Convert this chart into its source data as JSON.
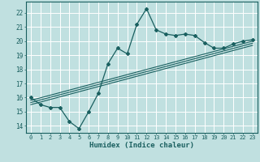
{
  "xlabel": "Humidex (Indice chaleur)",
  "ylabel": "",
  "xlim": [
    -0.5,
    23.5
  ],
  "ylim": [
    13.5,
    22.8
  ],
  "xticks": [
    0,
    1,
    2,
    3,
    4,
    5,
    6,
    7,
    8,
    9,
    10,
    11,
    12,
    13,
    14,
    15,
    16,
    17,
    18,
    19,
    20,
    21,
    22,
    23
  ],
  "yticks": [
    14,
    15,
    16,
    17,
    18,
    19,
    20,
    21,
    22
  ],
  "bg_color": "#c0e0e0",
  "line_color": "#1a6060",
  "grid_color": "#b0d4d4",
  "border_color": "#1a6060",
  "main_x": [
    0,
    1,
    2,
    3,
    4,
    5,
    6,
    7,
    8,
    9,
    10,
    11,
    12,
    13,
    14,
    15,
    16,
    17,
    18,
    19,
    20,
    21,
    22,
    23
  ],
  "main_y": [
    16.0,
    15.5,
    15.3,
    15.3,
    14.3,
    13.8,
    15.0,
    16.3,
    18.4,
    19.5,
    19.1,
    21.2,
    22.3,
    20.8,
    20.5,
    20.4,
    20.5,
    20.4,
    19.9,
    19.5,
    19.5,
    19.8,
    20.0,
    20.1
  ],
  "trend1_x": [
    0,
    23
  ],
  "trend1_y": [
    15.5,
    19.7
  ],
  "trend2_x": [
    0,
    23
  ],
  "trend2_y": [
    15.65,
    19.85
  ],
  "trend3_x": [
    0,
    23
  ],
  "trend3_y": [
    15.8,
    20.0
  ]
}
